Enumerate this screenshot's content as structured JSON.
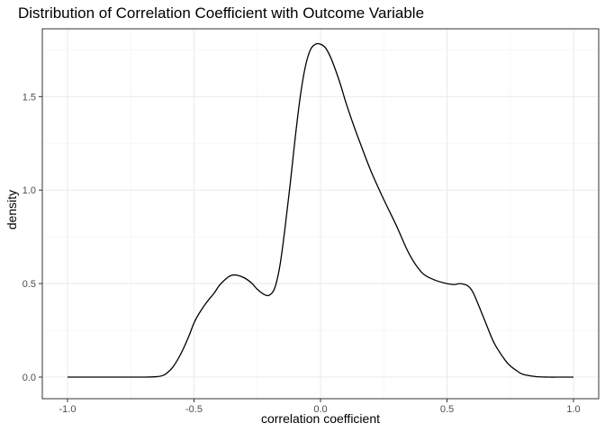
{
  "chart_data": {
    "type": "line",
    "title": "Distribution of Correlation Coefficient with Outcome Variable",
    "xlabel": "correlation coefficient",
    "ylabel": "density",
    "xlim": [
      -1.0,
      1.0
    ],
    "ylim": [
      0.0,
      1.8
    ],
    "x_ticks": [
      -1.0,
      -0.5,
      0.0,
      0.5,
      1.0
    ],
    "x_tick_labels": [
      "-1.0",
      "-0.5",
      "0.0",
      "0.5",
      "1.0"
    ],
    "y_ticks": [
      0.0,
      0.5,
      1.0,
      1.5
    ],
    "y_tick_labels": [
      "0.0",
      "0.5",
      "1.0",
      "1.5"
    ],
    "grid": true,
    "series": [
      {
        "color": "#000000",
        "x": [
          -1.0,
          -0.8,
          -0.7,
          -0.65,
          -0.62,
          -0.6,
          -0.58,
          -0.55,
          -0.52,
          -0.5,
          -0.48,
          -0.45,
          -0.42,
          -0.4,
          -0.37,
          -0.35,
          -0.33,
          -0.3,
          -0.27,
          -0.25,
          -0.22,
          -0.2,
          -0.18,
          -0.16,
          -0.14,
          -0.12,
          -0.1,
          -0.08,
          -0.06,
          -0.04,
          -0.02,
          0.0,
          0.02,
          0.04,
          0.06,
          0.08,
          0.1,
          0.13,
          0.16,
          0.2,
          0.25,
          0.3,
          0.35,
          0.4,
          0.45,
          0.5,
          0.53,
          0.55,
          0.58,
          0.6,
          0.62,
          0.65,
          0.68,
          0.7,
          0.73,
          0.75,
          0.78,
          0.8,
          0.85,
          0.9,
          0.95,
          1.0
        ],
        "y": [
          0.0,
          0.0,
          0.0,
          0.002,
          0.01,
          0.03,
          0.06,
          0.13,
          0.22,
          0.29,
          0.34,
          0.4,
          0.45,
          0.49,
          0.53,
          0.545,
          0.545,
          0.53,
          0.5,
          0.47,
          0.44,
          0.44,
          0.48,
          0.6,
          0.8,
          1.03,
          1.28,
          1.5,
          1.66,
          1.75,
          1.78,
          1.78,
          1.76,
          1.71,
          1.64,
          1.56,
          1.47,
          1.35,
          1.24,
          1.1,
          0.95,
          0.81,
          0.66,
          0.56,
          0.52,
          0.5,
          0.495,
          0.5,
          0.49,
          0.46,
          0.4,
          0.3,
          0.2,
          0.15,
          0.09,
          0.06,
          0.03,
          0.015,
          0.003,
          0.0,
          0.0,
          0.0
        ]
      }
    ]
  }
}
